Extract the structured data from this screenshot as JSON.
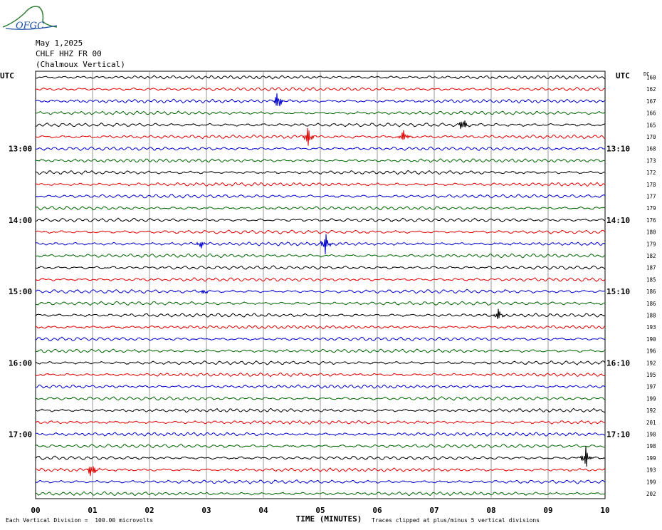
{
  "logo": {
    "text": "OFGC",
    "icon": "ofgc-mountain-logo"
  },
  "header": {
    "date": "May 1,2025",
    "station": "CHLF HHZ FR 00",
    "location": "(Chalmoux Vertical)"
  },
  "axis": {
    "left_unit": "UTC",
    "right_unit": "UTC",
    "dc_label": "DC",
    "xlabel": "TIME (MINUTES)",
    "x_ticks": [
      "00",
      "01",
      "02",
      "03",
      "04",
      "05",
      "06",
      "07",
      "08",
      "09",
      "10"
    ],
    "left_time_labels": [
      {
        "row": 6,
        "text": "13:00"
      },
      {
        "row": 12,
        "text": "14:00"
      },
      {
        "row": 18,
        "text": "15:00"
      },
      {
        "row": 24,
        "text": "16:00"
      },
      {
        "row": 30,
        "text": "17:00"
      }
    ],
    "right_time_labels": [
      {
        "row": 6,
        "text": "13:10"
      },
      {
        "row": 12,
        "text": "14:10"
      },
      {
        "row": 18,
        "text": "15:10"
      },
      {
        "row": 24,
        "text": "16:10"
      },
      {
        "row": 30,
        "text": "17:10"
      }
    ]
  },
  "footer": {
    "scale_note": "Each Vertical Division =  100.00 microvolts",
    "clip_note": "Traces clipped at plus/minus 5 vertical divisions"
  },
  "chart_data": {
    "type": "line",
    "title": "CHLF HHZ FR 00",
    "xlabel": "TIME (MINUTES)",
    "xlim": [
      0,
      10
    ],
    "trace_count": 36,
    "trace_colors": [
      "#000000",
      "#e00000",
      "#0000cc",
      "#006600"
    ],
    "dc_offsets": [
      160,
      162,
      167,
      166,
      165,
      170,
      168,
      173,
      172,
      178,
      177,
      179,
      176,
      180,
      179,
      182,
      187,
      185,
      186,
      186,
      188,
      193,
      190,
      196,
      192,
      195,
      197,
      199,
      192,
      201,
      198,
      198,
      199,
      193,
      199,
      202
    ],
    "events": [
      {
        "row": 2,
        "minute": 4.25,
        "amplitude": 12
      },
      {
        "row": 4,
        "minute": 7.5,
        "amplitude": 9
      },
      {
        "row": 5,
        "minute": 4.78,
        "amplitude": 14
      },
      {
        "row": 5,
        "minute": 6.45,
        "amplitude": 9
      },
      {
        "row": 14,
        "minute": 2.9,
        "amplitude": 5
      },
      {
        "row": 14,
        "minute": 5.08,
        "amplitude": 13
      },
      {
        "row": 18,
        "minute": 2.95,
        "amplitude": 3
      },
      {
        "row": 20,
        "minute": 8.12,
        "amplitude": 8
      },
      {
        "row": 32,
        "minute": 9.65,
        "amplitude": 14
      },
      {
        "row": 33,
        "minute": 0.98,
        "amplitude": 11
      }
    ]
  }
}
